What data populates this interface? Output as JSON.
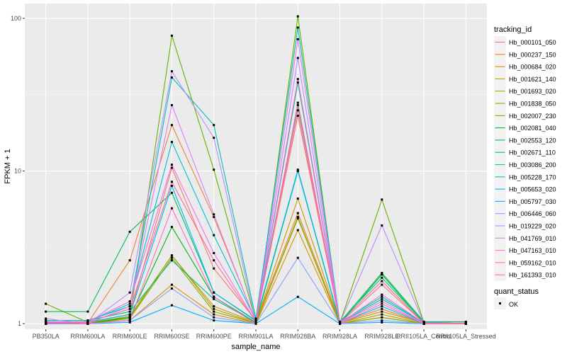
{
  "chart_data": {
    "type": "line",
    "xlabel": "sample_name",
    "ylabel": "FPKM + 1",
    "y_scale": "log10",
    "ylim": [
      0.92,
      125
    ],
    "y_ticks": [
      1,
      10,
      100
    ],
    "y_tick_labels": [
      "1",
      "10",
      "100"
    ],
    "grid": true,
    "categories": [
      "PB350LA",
      "RRIM600LA",
      "RRIM600LE",
      "RRIM600SE",
      "RRIM600PE",
      "RRIM901LA",
      "RRIM928BA",
      "RRIM928LA",
      "RRIM928LE",
      "RRII105LA_Control",
      "RRII105LA_Stressed"
    ],
    "legend": {
      "position": "right",
      "title": "tracking_id",
      "colors": [
        "#F8766D",
        "#EC8239",
        "#DB8E00",
        "#C79800",
        "#AEA200",
        "#8FAA00",
        "#64B200",
        "#00B81B",
        "#00BD5C",
        "#00C08B",
        "#00C1B2",
        "#00BFD4",
        "#00B8EF",
        "#00ADFF",
        "#8F9DFF",
        "#BB8CFF",
        "#DE7DF8",
        "#F271E3",
        "#FD6CC4",
        "#FF6C9F"
      ]
    },
    "series": [
      {
        "name": "Hb_000101_050",
        "values": [
          1.02,
          1.02,
          1.15,
          10.5,
          2.3,
          1.05,
          23,
          1.02,
          1.9,
          1.01,
          1.01
        ]
      },
      {
        "name": "Hb_000237_150",
        "values": [
          1.0,
          1.01,
          2.6,
          20,
          5.0,
          1.03,
          5.3,
          1.01,
          1.25,
          1.0,
          1.0
        ]
      },
      {
        "name": "Hb_000684_020",
        "values": [
          1.0,
          1.0,
          1.05,
          1.8,
          1.15,
          1.0,
          4.1,
          1.0,
          1.1,
          1.0,
          1.0
        ]
      },
      {
        "name": "Hb_001621_140",
        "values": [
          1.01,
          1.01,
          1.12,
          2.8,
          1.3,
          1.02,
          6.6,
          1.01,
          1.2,
          1.01,
          1.01
        ]
      },
      {
        "name": "Hb_001693_020",
        "values": [
          1.0,
          1.0,
          1.1,
          2.8,
          1.25,
          1.01,
          5.0,
          1.0,
          1.15,
          1.0,
          1.0
        ]
      },
      {
        "name": "Hb_001838_050",
        "values": [
          1.0,
          1.0,
          1.08,
          2.7,
          1.2,
          1.01,
          4.9,
          1.0,
          1.1,
          1.0,
          1.0
        ]
      },
      {
        "name": "Hb_002007_230",
        "values": [
          1.35,
          1.02,
          1.1,
          77,
          10.2,
          1.03,
          103,
          1.01,
          6.5,
          1.02,
          1.01
        ]
      },
      {
        "name": "Hb_002081_040",
        "values": [
          1.01,
          1.0,
          1.1,
          4.3,
          1.5,
          1.02,
          10,
          1.0,
          2.1,
          1.01,
          1.01
        ]
      },
      {
        "name": "Hb_002553_120",
        "values": [
          1.2,
          1.2,
          4.0,
          7.2,
          1.6,
          1.05,
          27,
          1.02,
          2.15,
          1.03,
          1.03
        ]
      },
      {
        "name": "Hb_002671_110",
        "values": [
          1.05,
          1.05,
          1.2,
          2.6,
          1.45,
          1.02,
          38,
          1.01,
          1.45,
          1.01,
          1.01
        ]
      },
      {
        "name": "Hb_003086_200",
        "values": [
          1.05,
          1.05,
          1.3,
          41,
          20,
          1.08,
          87,
          1.03,
          2.0,
          1.02,
          1.01
        ]
      },
      {
        "name": "Hb_005228_170",
        "values": [
          1.02,
          1.03,
          1.35,
          15.5,
          3.8,
          1.05,
          10,
          1.02,
          1.5,
          1.01,
          1.01
        ]
      },
      {
        "name": "Hb_005653_020",
        "values": [
          1.01,
          1.02,
          1.15,
          8,
          1.6,
          1.04,
          10.2,
          1.01,
          1.3,
          1.0,
          1.0
        ]
      },
      {
        "name": "Hb_005797_030",
        "values": [
          1.0,
          1.0,
          1.02,
          1.32,
          1.05,
          1.0,
          1.5,
          1.0,
          1.02,
          1.0,
          1.0
        ]
      },
      {
        "name": "Hb_006446_060",
        "values": [
          1.0,
          1.0,
          1.05,
          1.7,
          1.1,
          1.0,
          2.7,
          1.0,
          1.05,
          1.0,
          1.0
        ]
      },
      {
        "name": "Hb_019229_020",
        "values": [
          1.08,
          1.0,
          1.6,
          45,
          16.5,
          1.02,
          55,
          1.01,
          4.4,
          1.01,
          1.01
        ]
      },
      {
        "name": "Hb_041769_010",
        "values": [
          1.0,
          1.0,
          1.3,
          27,
          5.2,
          1.02,
          73,
          1.01,
          1.4,
          1.0,
          1.0
        ]
      },
      {
        "name": "Hb_047163_010",
        "values": [
          1.03,
          1.03,
          1.4,
          11,
          2.9,
          1.03,
          40,
          1.01,
          1.55,
          1.01,
          1.01
        ]
      },
      {
        "name": "Hb_059162_010",
        "values": [
          1.0,
          1.0,
          1.05,
          5.7,
          1.5,
          1.0,
          28,
          1.0,
          1.35,
          1.0,
          1.0
        ]
      },
      {
        "name": "Hb_161393_010",
        "values": [
          1.02,
          1.02,
          1.25,
          8.5,
          2.6,
          1.03,
          25,
          1.01,
          1.8,
          1.01,
          1.01
        ]
      }
    ],
    "quant_status": {
      "title": "quant_status",
      "label": "OK"
    }
  }
}
